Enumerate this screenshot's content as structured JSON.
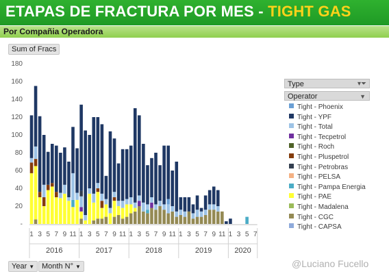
{
  "title_main": "ETAPAS DE FRACTURA POR MES - ",
  "title_accent": "TIGHT GAS",
  "subtitle": "Por Compañia Operadora",
  "value_field": "Sum of Fracs",
  "legend_title": "Type",
  "legend_subtitle": "Operator",
  "row_fields": [
    "Year",
    "Month N°"
  ],
  "credit": "@Luciano Fucello",
  "chart_data": {
    "type": "bar",
    "stacked": true,
    "ylim": [
      0,
      180
    ],
    "yticks": [
      "180",
      "160",
      "140",
      "120",
      "100",
      "80",
      "60",
      "40",
      "20",
      "-"
    ],
    "x_month_labels": [
      "1",
      "3",
      "5",
      "7",
      "9",
      "11",
      "1",
      "3",
      "5",
      "7",
      "9",
      "11",
      "1",
      "3",
      "5",
      "7",
      "9",
      "11",
      "1",
      "3",
      "5",
      "7",
      "9",
      "11",
      "1",
      "3",
      "5",
      "7"
    ],
    "years": [
      {
        "label": "2016",
        "months": 12
      },
      {
        "label": "2017",
        "months": 12
      },
      {
        "label": "2018",
        "months": 12
      },
      {
        "label": "2019",
        "months": 12
      },
      {
        "label": "2020",
        "months": 7
      }
    ],
    "series": [
      {
        "name": "Tight - Phoenix",
        "color": "#6a9fd4"
      },
      {
        "name": "Tight - YPF",
        "color": "#1f3864"
      },
      {
        "name": "Tight - Total",
        "color": "#9dc3e6"
      },
      {
        "name": "Tight - Tecpetrol",
        "color": "#7030a0"
      },
      {
        "name": "Tight - Roch",
        "color": "#4f6228"
      },
      {
        "name": "Tight - Pluspetrol",
        "color": "#843c0c"
      },
      {
        "name": "Tight - Petrobras",
        "color": "#333f50"
      },
      {
        "name": "Tight - PELSA",
        "color": "#f4b183"
      },
      {
        "name": "Tight - Pampa Energia",
        "color": "#4bacc6"
      },
      {
        "name": "Tight - PAE",
        "color": "#ffff33"
      },
      {
        "name": "Tight - Madalena",
        "color": "#9bbb59"
      },
      {
        "name": "Tight - CGC",
        "color": "#948a54"
      },
      {
        "name": "Tight - CAPSA",
        "color": "#8eaadb"
      }
    ],
    "months": [
      {
        "PAE": 57,
        "CGC": 0,
        "Pluspetrol": 12,
        "Total": 5,
        "Pampa Energia": 0,
        "Petrobras": 0,
        "Tecpetrol": 0,
        "Roch": 0,
        "Phoenix": 0,
        "YPF": 48
      },
      {
        "PAE": 60,
        "CGC": 5,
        "Pluspetrol": 8,
        "Total": 14,
        "Pampa Energia": 0,
        "Petrobras": 0,
        "Tecpetrol": 0,
        "Roch": 0,
        "Phoenix": 0,
        "YPF": 68
      },
      {
        "PAE": 30,
        "CGC": 0,
        "Pluspetrol": 6,
        "Total": 0,
        "Pampa Energia": 0,
        "Petrobras": 0,
        "Tecpetrol": 0,
        "Roch": 0,
        "Phoenix": 0,
        "YPF": 85
      },
      {
        "PAE": 20,
        "CGC": 0,
        "Pluspetrol": 10,
        "Total": 14,
        "Pampa Energia": 0,
        "Petrobras": 0,
        "Tecpetrol": 0,
        "Roch": 0,
        "Phoenix": 0,
        "YPF": 56
      },
      {
        "PAE": 38,
        "CGC": 0,
        "Pluspetrol": 6,
        "Total": 0,
        "Pampa Energia": 0,
        "Petrobras": 0,
        "Tecpetrol": 0,
        "Roch": 0,
        "Phoenix": 0,
        "YPF": 37
      },
      {
        "PAE": 42,
        "CGC": 0,
        "Pluspetrol": 4,
        "Total": 0,
        "Pampa Energia": 0,
        "Petrobras": 0,
        "Tecpetrol": 0,
        "Roch": 0,
        "Phoenix": 0,
        "YPF": 44
      },
      {
        "PAE": 30,
        "CGC": 0,
        "Pluspetrol": 6,
        "Total": 0,
        "Pampa Energia": 0,
        "Petrobras": 0,
        "Tecpetrol": 0,
        "Roch": 0,
        "Phoenix": 0,
        "YPF": 52
      },
      {
        "PAE": 29,
        "CGC": 0,
        "Pluspetrol": 0,
        "Total": 6,
        "Pampa Energia": 0,
        "Petrobras": 0,
        "Tecpetrol": 0,
        "Roch": 0,
        "Phoenix": 0,
        "YPF": 45
      },
      {
        "PAE": 34,
        "CGC": 0,
        "Pluspetrol": 0,
        "Total": 10,
        "Pampa Energia": 0,
        "Petrobras": 0,
        "Tecpetrol": 0,
        "Roch": 0,
        "Phoenix": 0,
        "YPF": 42
      },
      {
        "PAE": 26,
        "CGC": 0,
        "Pluspetrol": 0,
        "Total": 4,
        "Pampa Energia": 0,
        "Petrobras": 0,
        "Tecpetrol": 0,
        "Roch": 0,
        "Phoenix": 0,
        "YPF": 40
      },
      {
        "PAE": 19,
        "CGC": 0,
        "Pluspetrol": 0,
        "Total": 30,
        "Pampa Energia": 8,
        "Petrobras": 0,
        "Tecpetrol": 0,
        "Roch": 0,
        "Phoenix": 0,
        "YPF": 52
      },
      {
        "PAE": 27,
        "CGC": 0,
        "Pluspetrol": 0,
        "Total": 8,
        "Pampa Energia": 0,
        "Petrobras": 0,
        "Tecpetrol": 0,
        "Roch": 0,
        "Phoenix": 0,
        "YPF": 50
      },
      {
        "PAE": 8,
        "CGC": 6,
        "Pluspetrol": 0,
        "Total": 12,
        "Pampa Energia": 0,
        "Petrobras": 6,
        "Tecpetrol": 5,
        "Roch": 0,
        "Phoenix": 0,
        "YPF": 97
      },
      {
        "PAE": 4,
        "CGC": 0,
        "Pluspetrol": 0,
        "Total": 6,
        "Pampa Energia": 0,
        "Petrobras": 0,
        "Tecpetrol": 0,
        "Roch": 0,
        "Phoenix": 0,
        "YPF": 95
      },
      {
        "PAE": 34,
        "CGC": 0,
        "Pluspetrol": 0,
        "Total": 6,
        "Pampa Energia": 0,
        "Petrobras": 0,
        "Tecpetrol": 0,
        "Roch": 0,
        "Phoenix": 0,
        "YPF": 60
      },
      {
        "PAE": 20,
        "CGC": 4,
        "Pluspetrol": 0,
        "Total": 10,
        "Pampa Energia": 0,
        "Petrobras": 0,
        "Tecpetrol": 0,
        "Roch": 0,
        "Phoenix": 0,
        "YPF": 86
      },
      {
        "PAE": 30,
        "CGC": 6,
        "Pluspetrol": 4,
        "Total": 6,
        "Pampa Energia": 0,
        "Petrobras": 0,
        "Tecpetrol": 0,
        "Roch": 0,
        "Phoenix": 0,
        "YPF": 74
      },
      {
        "PAE": 12,
        "CGC": 6,
        "Pluspetrol": 8,
        "Total": 8,
        "Pampa Energia": 0,
        "Petrobras": 0,
        "Tecpetrol": 0,
        "Roch": 0,
        "Phoenix": 0,
        "YPF": 78
      },
      {
        "PAE": 14,
        "CGC": 8,
        "Pluspetrol": 0,
        "Total": 6,
        "Pampa Energia": 0,
        "Petrobras": 0,
        "Tecpetrol": 0,
        "Roch": 0,
        "Phoenix": 0,
        "YPF": 26
      },
      {
        "PAE": 12,
        "CGC": 0,
        "Pluspetrol": 0,
        "Total": 6,
        "Pampa Energia": 0,
        "Petrobras": 0,
        "Tecpetrol": 0,
        "Roch": 0,
        "Phoenix": 0,
        "YPF": 86
      },
      {
        "PAE": 18,
        "CGC": 8,
        "Pluspetrol": 4,
        "Total": 6,
        "Pampa Energia": 0,
        "Petrobras": 0,
        "Tecpetrol": 0,
        "Roch": 0,
        "Phoenix": 0,
        "YPF": 60
      },
      {
        "PAE": 10,
        "CGC": 10,
        "Pluspetrol": 0,
        "Total": 6,
        "Pampa Energia": 0,
        "Petrobras": 0,
        "Tecpetrol": 0,
        "Roch": 0,
        "Phoenix": 0,
        "YPF": 42
      },
      {
        "PAE": 12,
        "CGC": 6,
        "Pluspetrol": 0,
        "Total": 8,
        "Pampa Energia": 0,
        "Petrobras": 0,
        "Tecpetrol": 0,
        "Roch": 0,
        "Phoenix": 0,
        "YPF": 58
      },
      {
        "PAE": 14,
        "CGC": 8,
        "Pluspetrol": 0,
        "Total": 6,
        "Pampa Energia": 0,
        "Petrobras": 0,
        "Tecpetrol": 0,
        "Roch": 0,
        "Phoenix": 0,
        "YPF": 56
      },
      {
        "PAE": 10,
        "CGC": 12,
        "Pluspetrol": 0,
        "Total": 8,
        "Pampa Energia": 0,
        "Petrobras": 0,
        "Tecpetrol": 0,
        "Roch": 0,
        "Phoenix": 0,
        "YPF": 58
      },
      {
        "PAE": 4,
        "CGC": 14,
        "Pluspetrol": 0,
        "Total": 6,
        "Pampa Energia": 0,
        "Petrobras": 0,
        "Tecpetrol": 0,
        "Roch": 0,
        "Phoenix": 0,
        "YPF": 106
      },
      {
        "PAE": 0,
        "CGC": 20,
        "Pluspetrol": 0,
        "Total": 6,
        "Pampa Energia": 0,
        "Petrobras": 0,
        "Tecpetrol": 6,
        "Roch": 0,
        "Phoenix": 0,
        "YPF": 90
      },
      {
        "PAE": 0,
        "CGC": 14,
        "Pluspetrol": 0,
        "Total": 10,
        "Pampa Energia": 0,
        "Petrobras": 0,
        "Tecpetrol": 0,
        "Roch": 0,
        "Phoenix": 0,
        "YPF": 66
      },
      {
        "PAE": 0,
        "CGC": 12,
        "Pluspetrol": 0,
        "Total": 6,
        "Pampa Energia": 4,
        "Petrobras": 0,
        "Tecpetrol": 0,
        "Roch": 0,
        "Phoenix": 0,
        "YPF": 44
      },
      {
        "PAE": 0,
        "CGC": 18,
        "Pluspetrol": 0,
        "Total": 6,
        "Pampa Energia": 0,
        "Petrobras": 0,
        "Tecpetrol": 6,
        "Roch": 0,
        "Phoenix": 0,
        "YPF": 44
      },
      {
        "PAE": 0,
        "CGC": 16,
        "Pluspetrol": 0,
        "Total": 6,
        "Pampa Energia": 0,
        "Petrobras": 0,
        "Tecpetrol": 0,
        "Roch": 0,
        "Phoenix": 0,
        "YPF": 58
      },
      {
        "PAE": 0,
        "CGC": 20,
        "Pluspetrol": 0,
        "Total": 6,
        "Pampa Energia": 0,
        "Petrobras": 0,
        "Tecpetrol": 0,
        "Roch": 0,
        "Phoenix": 0,
        "YPF": 40
      },
      {
        "PAE": 0,
        "CGC": 16,
        "Pluspetrol": 0,
        "Total": 6,
        "Pampa Energia": 0,
        "Petrobras": 0,
        "Tecpetrol": 0,
        "Roch": 0,
        "Phoenix": 0,
        "YPF": 66
      },
      {
        "PAE": 0,
        "CGC": 12,
        "Pluspetrol": 0,
        "Total": 10,
        "Pampa Energia": 0,
        "Petrobras": 0,
        "Tecpetrol": 0,
        "Roch": 0,
        "Phoenix": 6,
        "YPF": 60
      },
      {
        "PAE": 0,
        "CGC": 14,
        "Pluspetrol": 0,
        "Total": 6,
        "Pampa Energia": 0,
        "Petrobras": 0,
        "Tecpetrol": 0,
        "Roch": 0,
        "Phoenix": 0,
        "YPF": 40
      },
      {
        "PAE": 0,
        "CGC": 8,
        "Pluspetrol": 0,
        "Total": 6,
        "Pampa Energia": 0,
        "Petrobras": 0,
        "Tecpetrol": 0,
        "Roch": 0,
        "Phoenix": 0,
        "YPF": 56
      },
      {
        "PAE": 0,
        "CGC": 10,
        "Pluspetrol": 0,
        "Total": 6,
        "Pampa Energia": 0,
        "Petrobras": 0,
        "Tecpetrol": 0,
        "Roch": 0,
        "Phoenix": 0,
        "YPF": 14
      },
      {
        "PAE": 0,
        "CGC": 8,
        "Pluspetrol": 0,
        "Total": 6,
        "Pampa Energia": 0,
        "Petrobras": 0,
        "Tecpetrol": 0,
        "Roch": 0,
        "Phoenix": 0,
        "YPF": 16
      },
      {
        "PAE": 0,
        "CGC": 14,
        "Pluspetrol": 0,
        "Total": 0,
        "Pampa Energia": 0,
        "Petrobras": 0,
        "Tecpetrol": 0,
        "Roch": 0,
        "Phoenix": 0,
        "YPF": 16
      },
      {
        "PAE": 0,
        "CGC": 6,
        "Pluspetrol": 0,
        "Total": 6,
        "Pampa Energia": 0,
        "Petrobras": 0,
        "Tecpetrol": 0,
        "Roch": 0,
        "Phoenix": 0,
        "YPF": 10
      },
      {
        "PAE": 0,
        "CGC": 8,
        "Pluspetrol": 0,
        "Total": 8,
        "Pampa Energia": 0,
        "Petrobras": 0,
        "Tecpetrol": 0,
        "Roch": 0,
        "Phoenix": 0,
        "YPF": 16
      },
      {
        "PAE": 0,
        "CGC": 8,
        "Pluspetrol": 0,
        "Total": 6,
        "Pampa Energia": 0,
        "Petrobras": 0,
        "Tecpetrol": 0,
        "Roch": 0,
        "Phoenix": 0,
        "YPF": 4
      },
      {
        "PAE": 0,
        "CGC": 10,
        "Pluspetrol": 0,
        "Total": 6,
        "Pampa Energia": 0,
        "Petrobras": 0,
        "Tecpetrol": 0,
        "Roch": 0,
        "Phoenix": 0,
        "YPF": 16
      },
      {
        "PAE": 0,
        "CGC": 16,
        "Pluspetrol": 0,
        "Total": 6,
        "Pampa Energia": 0,
        "Petrobras": 0,
        "Tecpetrol": 0,
        "Roch": 0,
        "Phoenix": 0,
        "YPF": 16
      },
      {
        "PAE": 0,
        "CGC": 16,
        "Pluspetrol": 0,
        "Total": 6,
        "Pampa Energia": 0,
        "Petrobras": 0,
        "Tecpetrol": 0,
        "Roch": 0,
        "Phoenix": 0,
        "YPF": 20
      },
      {
        "PAE": 0,
        "CGC": 14,
        "Pluspetrol": 0,
        "Total": 6,
        "Pampa Energia": 0,
        "Petrobras": 0,
        "Tecpetrol": 0,
        "Roch": 0,
        "Phoenix": 0,
        "YPF": 18
      },
      {
        "PAE": 0,
        "CGC": 14,
        "Pluspetrol": 0,
        "Total": 0,
        "Pampa Energia": 0,
        "Petrobras": 0,
        "Tecpetrol": 0,
        "Roch": 0,
        "Phoenix": 0,
        "YPF": 0
      },
      {
        "PAE": 0,
        "CGC": 0,
        "Pluspetrol": 0,
        "Total": 0,
        "Pampa Energia": 0,
        "Petrobras": 0,
        "Tecpetrol": 0,
        "Roch": 0,
        "Phoenix": 0,
        "YPF": 3
      },
      {
        "PAE": 0,
        "CGC": 0,
        "Pluspetrol": 0,
        "Total": 0,
        "Pampa Energia": 0,
        "Petrobras": 0,
        "Tecpetrol": 0,
        "Roch": 0,
        "Phoenix": 0,
        "YPF": 6
      },
      {
        "PAE": 0,
        "CGC": 0,
        "Pluspetrol": 0,
        "Total": 0,
        "Pampa Energia": 0,
        "Petrobras": 0,
        "Tecpetrol": 0,
        "Roch": 0,
        "Phoenix": 0,
        "YPF": 0
      },
      {
        "PAE": 0,
        "CGC": 0,
        "Pluspetrol": 0,
        "Total": 0,
        "Pampa Energia": 0,
        "Petrobras": 0,
        "Tecpetrol": 0,
        "Roch": 0,
        "Phoenix": 0,
        "YPF": 0
      },
      {
        "PAE": 0,
        "CGC": 0,
        "Pluspetrol": 0,
        "Total": 0,
        "Pampa Energia": 0,
        "Petrobras": 0,
        "Tecpetrol": 0,
        "Roch": 0,
        "Phoenix": 0,
        "YPF": 0
      },
      {
        "PAE": 0,
        "CGC": 0,
        "Pluspetrol": 0,
        "Total": 0,
        "Pampa Energia": 8,
        "Petrobras": 0,
        "Tecpetrol": 0,
        "Roch": 0,
        "Phoenix": 0,
        "YPF": 0
      },
      {
        "PAE": 0,
        "CGC": 0,
        "Pluspetrol": 0,
        "Total": 0,
        "Pampa Energia": 0,
        "Petrobras": 0,
        "Tecpetrol": 0,
        "Roch": 0,
        "Phoenix": 0,
        "YPF": 0
      },
      {
        "PAE": 0,
        "CGC": 0,
        "Pluspetrol": 0,
        "Total": 0,
        "Pampa Energia": 0,
        "Petrobras": 0,
        "Tecpetrol": 0,
        "Roch": 0,
        "Phoenix": 0,
        "YPF": 0
      }
    ]
  }
}
